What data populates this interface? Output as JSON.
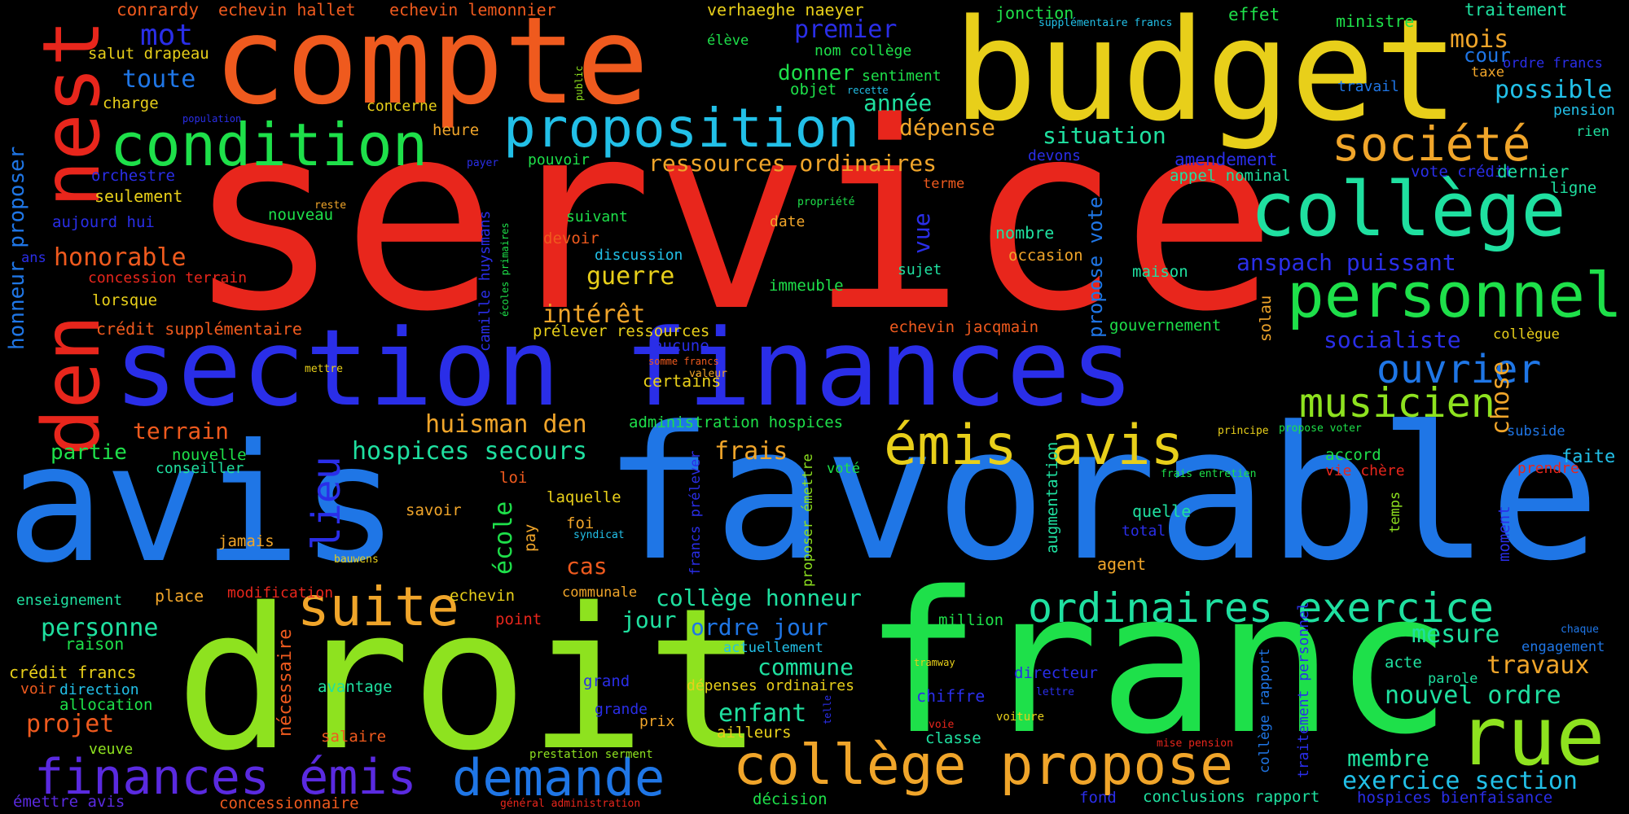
{
  "palette": {
    "red": "#e8261c",
    "orange": "#ef5a1e",
    "amber": "#f0a52a",
    "yellow": "#e8cf1a",
    "lime": "#8ee21f",
    "green": "#1ee04a",
    "spring": "#1fe0a0",
    "cyan": "#22c0e8",
    "azure": "#1f76e6",
    "blue": "#2a2ee8",
    "violet": "#5a2ae0"
  },
  "words": [
    {
      "text": "service",
      "color": "red"
    },
    {
      "text": "avis",
      "color": "azure"
    },
    {
      "text": "favorable",
      "color": "azure"
    },
    {
      "text": "section finances",
      "color": "blue"
    },
    {
      "text": "droit",
      "color": "lime"
    },
    {
      "text": "franc",
      "color": "green"
    },
    {
      "text": "compte",
      "color": "orange"
    },
    {
      "text": "budget",
      "color": "yellow"
    },
    {
      "text": "den",
      "color": "red"
    },
    {
      "text": "nest",
      "color": "red"
    },
    {
      "text": "collège",
      "color": "spring"
    },
    {
      "text": "personnel",
      "color": "green"
    },
    {
      "text": "condition",
      "color": "green"
    },
    {
      "text": "proposition",
      "color": "cyan"
    },
    {
      "text": "société",
      "color": "amber"
    },
    {
      "text": "suite",
      "color": "amber"
    },
    {
      "text": "émis avis",
      "color": "yellow"
    },
    {
      "text": "rue",
      "color": "lime"
    },
    {
      "text": "collège propose",
      "color": "amber"
    },
    {
      "text": "demande",
      "color": "azure"
    },
    {
      "text": "finances émis",
      "color": "violet"
    },
    {
      "text": "ordinaires exercice",
      "color": "spring"
    },
    {
      "text": "musicien",
      "color": "lime"
    },
    {
      "text": "ouvrier",
      "color": "azure"
    },
    {
      "text": "lieu",
      "color": "blue"
    },
    {
      "text": "mot",
      "color": "blue"
    },
    {
      "text": "toute",
      "color": "azure"
    },
    {
      "text": "premier",
      "color": "blue"
    },
    {
      "text": "mois",
      "color": "amber"
    },
    {
      "text": "possible",
      "color": "cyan"
    },
    {
      "text": "chose",
      "color": "amber"
    },
    {
      "text": "ressources ordinaires",
      "color": "amber"
    },
    {
      "text": "hospices secours",
      "color": "spring"
    },
    {
      "text": "huisman den",
      "color": "amber"
    },
    {
      "text": "honorable",
      "color": "orange"
    },
    {
      "text": "anspach puissant",
      "color": "blue"
    },
    {
      "text": "socialiste",
      "color": "blue"
    },
    {
      "text": "dépense",
      "color": "amber"
    },
    {
      "text": "situation",
      "color": "spring"
    },
    {
      "text": "année",
      "color": "spring"
    },
    {
      "text": "donner",
      "color": "green"
    },
    {
      "text": "guerre",
      "color": "yellow"
    },
    {
      "text": "intérêt",
      "color": "amber"
    },
    {
      "text": "frais",
      "color": "amber"
    },
    {
      "text": "exercice section",
      "color": "cyan"
    },
    {
      "text": "membre",
      "color": "spring"
    },
    {
      "text": "nouvel ordre",
      "color": "spring"
    },
    {
      "text": "travaux",
      "color": "amber"
    },
    {
      "text": "mesure",
      "color": "spring"
    },
    {
      "text": "enfant",
      "color": "spring"
    },
    {
      "text": "projet",
      "color": "orange"
    },
    {
      "text": "personne",
      "color": "spring"
    },
    {
      "text": "partie",
      "color": "green"
    },
    {
      "text": "terrain",
      "color": "orange"
    },
    {
      "text": "ordre jour",
      "color": "azure"
    },
    {
      "text": "collège honneur",
      "color": "spring"
    },
    {
      "text": "commune",
      "color": "spring"
    },
    {
      "text": "jour",
      "color": "spring"
    },
    {
      "text": "cas",
      "color": "orange"
    },
    {
      "text": "école",
      "color": "green"
    },
    {
      "text": "honneur proposer",
      "color": "azure"
    },
    {
      "text": "nécessaire",
      "color": "orange"
    },
    {
      "text": "propose vote",
      "color": "azure"
    },
    {
      "text": "vue",
      "color": "blue"
    },
    {
      "text": "conrardy",
      "color": "orange"
    },
    {
      "text": "echevin hallet",
      "color": "orange"
    },
    {
      "text": "echevin lemonnier",
      "color": "orange"
    },
    {
      "text": "verhaeghe naeyer",
      "color": "yellow"
    },
    {
      "text": "jonction",
      "color": "green"
    },
    {
      "text": "supplémentaire francs",
      "color": "cyan"
    },
    {
      "text": "effet",
      "color": "green"
    },
    {
      "text": "ministre",
      "color": "green"
    },
    {
      "text": "traitement",
      "color": "spring"
    },
    {
      "text": "cour",
      "color": "azure"
    },
    {
      "text": "ordre francs",
      "color": "blue"
    },
    {
      "text": "taxe",
      "color": "amber"
    },
    {
      "text": "travail",
      "color": "azure"
    },
    {
      "text": "pension",
      "color": "cyan"
    },
    {
      "text": "rien",
      "color": "spring"
    },
    {
      "text": "salut drapeau",
      "color": "yellow"
    },
    {
      "text": "élève",
      "color": "green"
    },
    {
      "text": "nom collège",
      "color": "green"
    },
    {
      "text": "charge",
      "color": "yellow"
    },
    {
      "text": "concerne",
      "color": "yellow"
    },
    {
      "text": "sentiment",
      "color": "green"
    },
    {
      "text": "objet",
      "color": "green"
    },
    {
      "text": "recette",
      "color": "cyan"
    },
    {
      "text": "population",
      "color": "blue"
    },
    {
      "text": "public",
      "color": "lime"
    },
    {
      "text": "heure",
      "color": "amber"
    },
    {
      "text": "devons",
      "color": "blue"
    },
    {
      "text": "amendement",
      "color": "blue"
    },
    {
      "text": "appel nominal",
      "color": "spring"
    },
    {
      "text": "vote crédit",
      "color": "blue"
    },
    {
      "text": "dernier",
      "color": "spring"
    },
    {
      "text": "ligne",
      "color": "spring"
    },
    {
      "text": "orchestre",
      "color": "blue"
    },
    {
      "text": "seulement",
      "color": "yellow"
    },
    {
      "text": "payer",
      "color": "blue"
    },
    {
      "text": "pouvoir",
      "color": "green"
    },
    {
      "text": "terme",
      "color": "orange"
    },
    {
      "text": "aujourd hui",
      "color": "blue"
    },
    {
      "text": "reste",
      "color": "amber"
    },
    {
      "text": "nouveau",
      "color": "green"
    },
    {
      "text": "propriété",
      "color": "green"
    },
    {
      "text": "suivant",
      "color": "green"
    },
    {
      "text": "nombre",
      "color": "spring"
    },
    {
      "text": "occasion",
      "color": "amber"
    },
    {
      "text": "ans",
      "color": "blue"
    },
    {
      "text": "devoir",
      "color": "orange"
    },
    {
      "text": "date",
      "color": "amber"
    },
    {
      "text": "discussion",
      "color": "cyan"
    },
    {
      "text": "sujet",
      "color": "spring"
    },
    {
      "text": "maison",
      "color": "spring"
    },
    {
      "text": "concession terrain",
      "color": "red"
    },
    {
      "text": "camille huysmans",
      "color": "blue"
    },
    {
      "text": "écoles primaires",
      "color": "green"
    },
    {
      "text": "lorsque",
      "color": "yellow"
    },
    {
      "text": "immeuble",
      "color": "green"
    },
    {
      "text": "solau",
      "color": "amber"
    },
    {
      "text": "crédit supplémentaire",
      "color": "orange"
    },
    {
      "text": "prélever ressources",
      "color": "yellow"
    },
    {
      "text": "echevin jacqmain",
      "color": "orange"
    },
    {
      "text": "gouvernement",
      "color": "green"
    },
    {
      "text": "collègue",
      "color": "yellow"
    },
    {
      "text": "aucune",
      "color": "blue"
    },
    {
      "text": "mettre",
      "color": "yellow"
    },
    {
      "text": "certains",
      "color": "yellow"
    },
    {
      "text": "somme francs",
      "color": "orange"
    },
    {
      "text": "valeur",
      "color": "amber"
    },
    {
      "text": "administration hospices",
      "color": "green"
    },
    {
      "text": "principe",
      "color": "yellow"
    },
    {
      "text": "propose voter",
      "color": "green"
    },
    {
      "text": "subside",
      "color": "azure"
    },
    {
      "text": "faite",
      "color": "cyan"
    },
    {
      "text": "conseiller",
      "color": "spring"
    },
    {
      "text": "nouvelle",
      "color": "green"
    },
    {
      "text": "loi",
      "color": "orange"
    },
    {
      "text": "voté",
      "color": "green"
    },
    {
      "text": "laquelle",
      "color": "yellow"
    },
    {
      "text": "accord",
      "color": "green"
    },
    {
      "text": "frais entretien",
      "color": "green"
    },
    {
      "text": "prendre",
      "color": "red"
    },
    {
      "text": "vie chère",
      "color": "red"
    },
    {
      "text": "savoir",
      "color": "amber"
    },
    {
      "text": "foi",
      "color": "amber"
    },
    {
      "text": "pay",
      "color": "amber"
    },
    {
      "text": "syndicat",
      "color": "cyan"
    },
    {
      "text": "francs prélever",
      "color": "blue"
    },
    {
      "text": "proposer émettre",
      "color": "lime"
    },
    {
      "text": "collège rapport",
      "color": "azure"
    },
    {
      "text": "augmentation",
      "color": "spring"
    },
    {
      "text": "quelle",
      "color": "spring"
    },
    {
      "text": "temps",
      "color": "lime"
    },
    {
      "text": "total",
      "color": "blue"
    },
    {
      "text": "moment",
      "color": "blue"
    },
    {
      "text": "jamais",
      "color": "amber"
    },
    {
      "text": "bauwens",
      "color": "yellow"
    },
    {
      "text": "agent",
      "color": "amber"
    },
    {
      "text": "enseignement",
      "color": "spring"
    },
    {
      "text": "place",
      "color": "amber"
    },
    {
      "text": "modification",
      "color": "red"
    },
    {
      "text": "echevin",
      "color": "yellow"
    },
    {
      "text": "communale",
      "color": "amber"
    },
    {
      "text": "point",
      "color": "red"
    },
    {
      "text": "million",
      "color": "green"
    },
    {
      "text": "chaque",
      "color": "azure"
    },
    {
      "text": "engagement",
      "color": "azure"
    },
    {
      "text": "raison",
      "color": "green"
    },
    {
      "text": "actuellement",
      "color": "cyan"
    },
    {
      "text": "acte",
      "color": "spring"
    },
    {
      "text": "parole",
      "color": "spring"
    },
    {
      "text": "crédit francs",
      "color": "yellow"
    },
    {
      "text": "tramway",
      "color": "yellow"
    },
    {
      "text": "directeur",
      "color": "blue"
    },
    {
      "text": "voir",
      "color": "orange"
    },
    {
      "text": "direction",
      "color": "cyan"
    },
    {
      "text": "avantage",
      "color": "spring"
    },
    {
      "text": "grand",
      "color": "blue"
    },
    {
      "text": "dépenses ordinaires",
      "color": "yellow"
    },
    {
      "text": "chiffre",
      "color": "blue"
    },
    {
      "text": "lettre",
      "color": "blue"
    },
    {
      "text": "allocation",
      "color": "green"
    },
    {
      "text": "grande",
      "color": "blue"
    },
    {
      "text": "prix",
      "color": "amber"
    },
    {
      "text": "telle",
      "color": "blue"
    },
    {
      "text": "voie",
      "color": "red"
    },
    {
      "text": "voiture",
      "color": "yellow"
    },
    {
      "text": "salaire",
      "color": "orange"
    },
    {
      "text": "ailleurs",
      "color": "yellow"
    },
    {
      "text": "classe",
      "color": "spring"
    },
    {
      "text": "traitement personnel",
      "color": "blue"
    },
    {
      "text": "veuve",
      "color": "lime"
    },
    {
      "text": "prestation serment",
      "color": "lime"
    },
    {
      "text": "mise pension",
      "color": "red"
    },
    {
      "text": "émettre avis",
      "color": "violet"
    },
    {
      "text": "concessionnaire",
      "color": "orange"
    },
    {
      "text": "général administration",
      "color": "red"
    },
    {
      "text": "décision",
      "color": "green"
    },
    {
      "text": "fond",
      "color": "blue"
    },
    {
      "text": "conclusions rapport",
      "color": "spring"
    },
    {
      "text": "hospices bienfaisance",
      "color": "blue"
    }
  ]
}
